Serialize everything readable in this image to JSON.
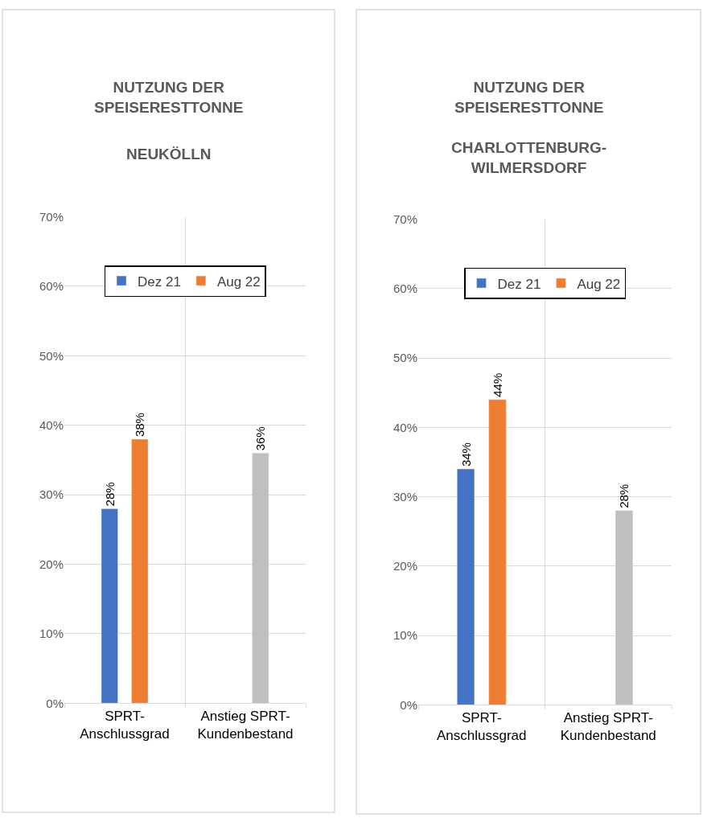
{
  "chart_data": [
    {
      "type": "bar",
      "title": "NUTZUNG DER\nSPEISERESTTONNE",
      "subtitle": "NEUKÖLLN",
      "categories": [
        "SPRT-\nAnschlussgrad",
        "Anstieg SPRT-\nKundenbestand"
      ],
      "series": [
        {
          "name": "Dez 21",
          "color": "#4472c4",
          "values": [
            28,
            null
          ],
          "value_labels": [
            "28%",
            null
          ]
        },
        {
          "name": "Aug 22",
          "color": "#ed7d31",
          "values": [
            38,
            null
          ],
          "value_labels": [
            "38%",
            null
          ]
        },
        {
          "color": "#bfbfbf",
          "values": [
            null,
            36
          ],
          "value_labels": [
            null,
            "36%"
          ]
        }
      ],
      "ylim": [
        0,
        70
      ],
      "yticks": [
        {
          "value": 0,
          "label": "0%"
        },
        {
          "value": 10,
          "label": "10%"
        },
        {
          "value": 20,
          "label": "20%"
        },
        {
          "value": 30,
          "label": "30%"
        },
        {
          "value": 40,
          "label": "40%"
        },
        {
          "value": 50,
          "label": "50%"
        },
        {
          "value": 60,
          "label": "60%"
        },
        {
          "value": 70,
          "label": "70%"
        }
      ],
      "grid": true,
      "legend": "top"
    },
    {
      "type": "bar",
      "title": "NUTZUNG DER\nSPEISERESTTONNE",
      "subtitle": "CHARLOTTENBURG-\nWILMERSDORF",
      "categories": [
        "SPRT-\nAnschlussgrad",
        "Anstieg SPRT-\nKundenbestand"
      ],
      "series": [
        {
          "name": "Dez 21",
          "color": "#4472c4",
          "values": [
            34,
            null
          ],
          "value_labels": [
            "34%",
            null
          ]
        },
        {
          "name": "Aug 22",
          "color": "#ed7d31",
          "values": [
            44,
            null
          ],
          "value_labels": [
            "44%",
            null
          ]
        },
        {
          "color": "#bfbfbf",
          "values": [
            null,
            28
          ],
          "value_labels": [
            null,
            "28%"
          ]
        }
      ],
      "ylim": [
        0,
        70
      ],
      "yticks": [
        {
          "value": 0,
          "label": "0%"
        },
        {
          "value": 10,
          "label": "10%"
        },
        {
          "value": 20,
          "label": "20%"
        },
        {
          "value": 30,
          "label": "30%"
        },
        {
          "value": 40,
          "label": "40%"
        },
        {
          "value": 50,
          "label": "50%"
        },
        {
          "value": 60,
          "label": "60%"
        },
        {
          "value": 70,
          "label": "70%"
        }
      ],
      "grid": true,
      "legend": "top"
    }
  ]
}
